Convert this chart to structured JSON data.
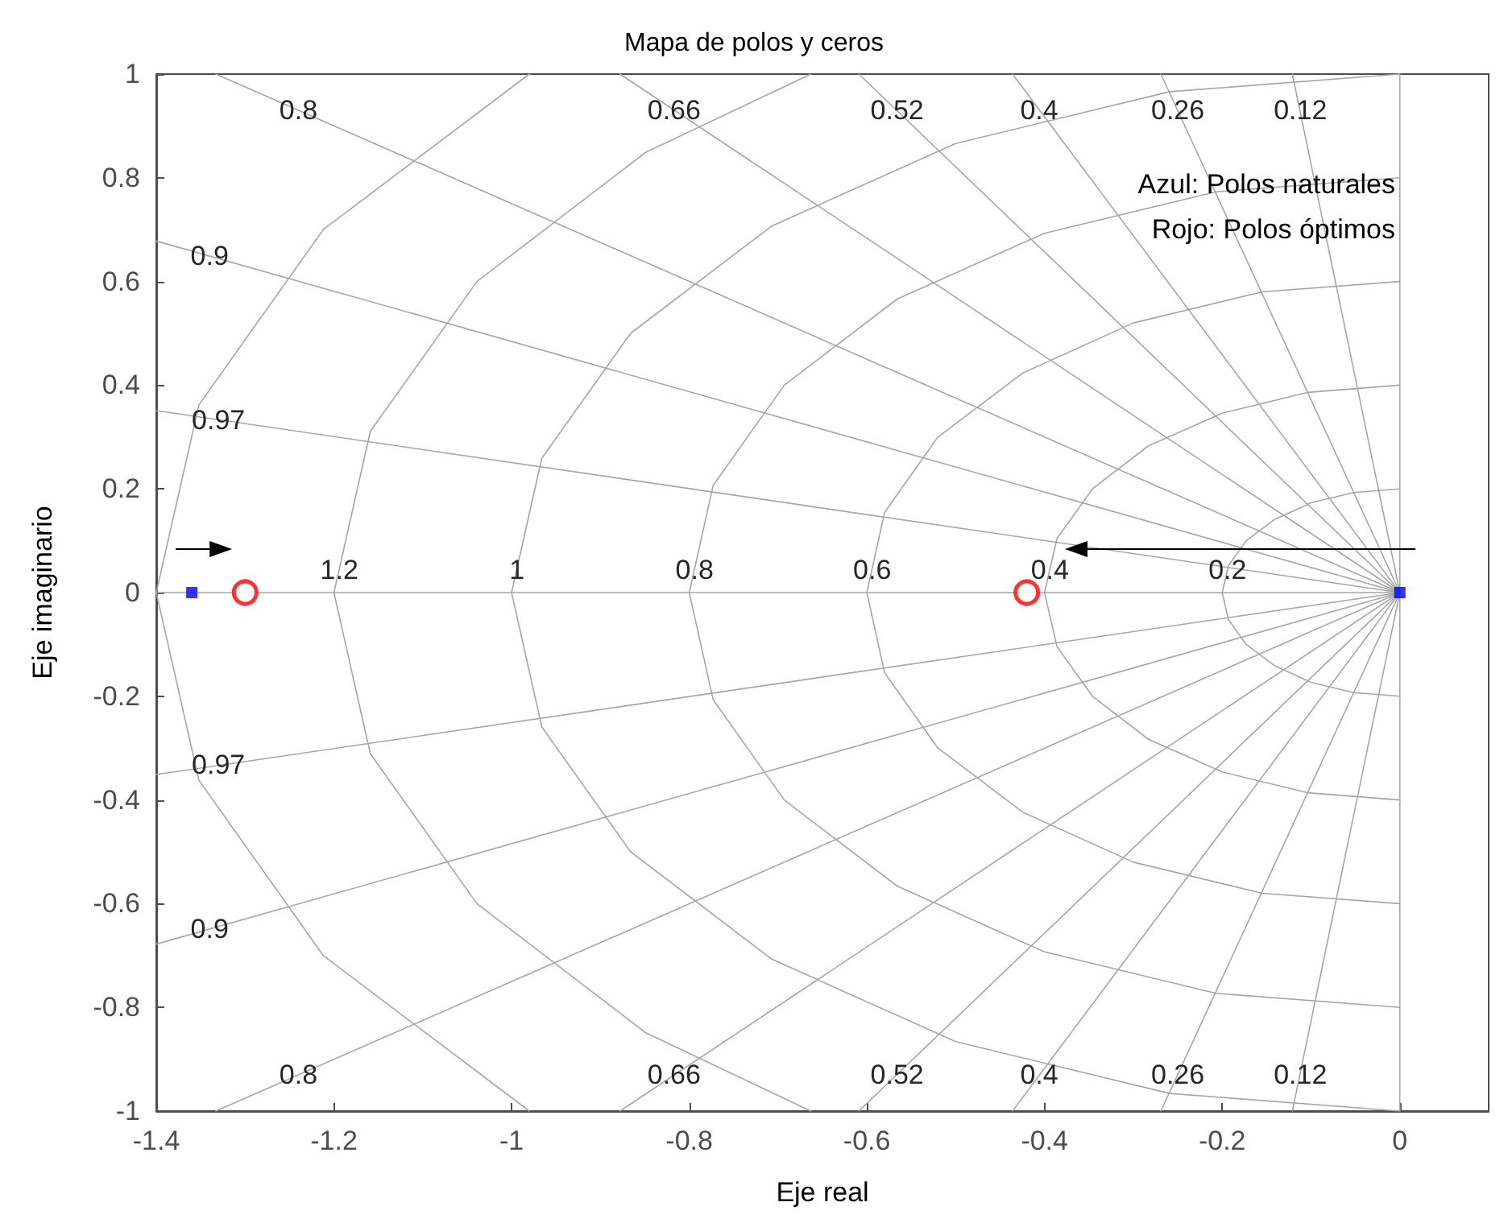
{
  "chart_data": {
    "type": "scatter",
    "title": "Mapa de polos y ceros",
    "xlabel": "Eje real",
    "ylabel": "Eje imaginario",
    "xlim": [
      -1.4,
      0.1
    ],
    "ylim": [
      -1,
      1
    ],
    "xticks": [
      -1.4,
      -1.2,
      -1,
      -0.8,
      -0.6,
      -0.4,
      -0.2,
      0
    ],
    "yticks": [
      -1,
      -0.8,
      -0.6,
      -0.4,
      -0.2,
      0,
      0.2,
      0.4,
      0.6,
      0.8,
      1
    ],
    "grid": false,
    "series": [
      {
        "type": "line",
        "color": "#a6a6a6",
        "marker": "none",
        "x": [
          0,
          -0.052,
          -0.1,
          -0.141,
          -0.173,
          -0.193,
          -0.2,
          -0.193,
          -0.173,
          -0.141,
          -0.1,
          -0.052,
          0
        ],
        "values": [
          0.2,
          0.193,
          0.173,
          0.141,
          0.1,
          0.052,
          0,
          -0.052,
          -0.1,
          -0.141,
          -0.173,
          -0.193,
          -0.2
        ]
      },
      {
        "type": "line",
        "color": "#a6a6a6",
        "marker": "none",
        "x": [
          0,
          -0.104,
          -0.2,
          -0.283,
          -0.346,
          -0.386,
          -0.4,
          -0.386,
          -0.346,
          -0.283,
          -0.2,
          -0.104,
          0
        ],
        "values": [
          0.4,
          0.386,
          0.346,
          0.283,
          0.2,
          0.104,
          0,
          -0.104,
          -0.2,
          -0.283,
          -0.346,
          -0.386,
          -0.4
        ]
      },
      {
        "type": "line",
        "color": "#a6a6a6",
        "marker": "none",
        "x": [
          0,
          -0.155,
          -0.3,
          -0.424,
          -0.52,
          -0.58,
          -0.6,
          -0.58,
          -0.52,
          -0.424,
          -0.3,
          -0.155,
          0
        ],
        "values": [
          0.6,
          0.58,
          0.52,
          0.424,
          0.3,
          0.155,
          0,
          -0.155,
          -0.3,
          -0.424,
          -0.52,
          -0.58,
          -0.6
        ]
      },
      {
        "type": "line",
        "color": "#a6a6a6",
        "marker": "none",
        "x": [
          0,
          -0.207,
          -0.4,
          -0.566,
          -0.693,
          -0.773,
          -0.8,
          -0.773,
          -0.693,
          -0.566,
          -0.4,
          -0.207,
          0
        ],
        "values": [
          0.8,
          0.773,
          0.693,
          0.566,
          0.4,
          0.207,
          0,
          -0.207,
          -0.4,
          -0.566,
          -0.693,
          -0.773,
          -0.8
        ]
      },
      {
        "type": "line",
        "color": "#a6a6a6",
        "marker": "none",
        "x": [
          0,
          -0.259,
          -0.5,
          -0.707,
          -0.866,
          -0.966,
          -1,
          -0.966,
          -0.866,
          -0.707,
          -0.5,
          -0.259,
          0
        ],
        "values": [
          1,
          0.966,
          0.866,
          0.707,
          0.5,
          0.259,
          0,
          -0.259,
          -0.5,
          -0.707,
          -0.866,
          -0.966,
          -1
        ]
      },
      {
        "type": "line",
        "color": "#a6a6a6",
        "marker": "none",
        "x": [
          -0.663,
          -0.849,
          -1.039,
          -1.159,
          -1.2,
          -1.159,
          -1.039,
          -0.849,
          -0.663
        ],
        "values": [
          1,
          0.849,
          0.6,
          0.311,
          0,
          -0.311,
          -0.6,
          -0.849,
          -1
        ]
      },
      {
        "type": "line",
        "color": "#a6a6a6",
        "marker": "none",
        "x": [
          -0.98,
          -1.212,
          -1.352,
          -1.4,
          -1.352,
          -1.212,
          -0.98
        ],
        "values": [
          1,
          0.7,
          0.362,
          0,
          -0.362,
          -0.7,
          -1
        ]
      },
      {
        "type": "line",
        "color": "#a6a6a6",
        "marker": "none",
        "x": [
          -0.121,
          0,
          -0.121
        ],
        "values": [
          1,
          0,
          -1
        ]
      },
      {
        "type": "line",
        "color": "#a6a6a6",
        "marker": "none",
        "x": [
          -0.269,
          0,
          -0.269
        ],
        "values": [
          1,
          0,
          -1
        ]
      },
      {
        "type": "line",
        "color": "#a6a6a6",
        "marker": "none",
        "x": [
          -0.436,
          0,
          -0.436
        ],
        "values": [
          1,
          0,
          -1
        ]
      },
      {
        "type": "line",
        "color": "#a6a6a6",
        "marker": "none",
        "x": [
          -0.609,
          0,
          -0.609
        ],
        "values": [
          1,
          0,
          -1
        ]
      },
      {
        "type": "line",
        "color": "#a6a6a6",
        "marker": "none",
        "x": [
          -0.878,
          0,
          -0.878
        ],
        "values": [
          1,
          0,
          -1
        ]
      },
      {
        "type": "line",
        "color": "#a6a6a6",
        "marker": "none",
        "x": [
          -1.333,
          0,
          -1.333
        ],
        "values": [
          1,
          0,
          -1
        ]
      },
      {
        "type": "line",
        "color": "#a6a6a6",
        "marker": "none",
        "x": [
          -1.4,
          0,
          -1.4
        ],
        "values": [
          0.678,
          0,
          -0.678
        ]
      },
      {
        "type": "line",
        "color": "#a6a6a6",
        "marker": "none",
        "x": [
          -1.4,
          0,
          -1.4
        ],
        "values": [
          0.351,
          0,
          -0.351
        ]
      },
      {
        "type": "line",
        "color": "#a6a6a6",
        "marker": "none",
        "x": [
          -1.4,
          0
        ],
        "values": [
          0,
          0
        ]
      },
      {
        "type": "line",
        "color": "#a6a6a6",
        "marker": "none",
        "x": [
          0,
          0
        ],
        "values": [
          1,
          -1
        ]
      },
      {
        "type": "scatter",
        "color": "#0000ff",
        "marker": "square",
        "x": [
          -1.36,
          0
        ],
        "values": [
          0,
          0
        ]
      },
      {
        "type": "scatter",
        "color": "#ff0000",
        "marker": "circle",
        "x": [
          -1.3,
          -0.42
        ],
        "values": [
          0,
          0
        ]
      }
    ],
    "annotations": [
      {
        "text": "0.8",
        "x": -1.24,
        "y": 0.93
      },
      {
        "text": "0.66",
        "x": -0.817,
        "y": 0.93
      },
      {
        "text": "0.52",
        "x": -0.566,
        "y": 0.93
      },
      {
        "text": "0.4",
        "x": -0.406,
        "y": 0.93
      },
      {
        "text": "0.26",
        "x": -0.25,
        "y": 0.93
      },
      {
        "text": "0.12",
        "x": -0.112,
        "y": 0.93
      },
      {
        "text": "0.9",
        "x": -1.34,
        "y": 0.649
      },
      {
        "text": "0.97",
        "x": -1.33,
        "y": 0.333
      },
      {
        "text": "0.97",
        "x": -1.33,
        "y": -0.333
      },
      {
        "text": "0.9",
        "x": -1.34,
        "y": -0.649
      },
      {
        "text": "0.8",
        "x": -1.24,
        "y": -0.93
      },
      {
        "text": "0.66",
        "x": -0.817,
        "y": -0.93
      },
      {
        "text": "0.52",
        "x": -0.566,
        "y": -0.93
      },
      {
        "text": "0.4",
        "x": -0.406,
        "y": -0.93
      },
      {
        "text": "0.26",
        "x": -0.25,
        "y": -0.93
      },
      {
        "text": "0.12",
        "x": -0.112,
        "y": -0.93
      },
      {
        "text": "1.2",
        "x": -1.194,
        "y": 0.043
      },
      {
        "text": "1",
        "x": -0.994,
        "y": 0.043
      },
      {
        "text": "0.8",
        "x": -0.794,
        "y": 0.043
      },
      {
        "text": "0.6",
        "x": -0.594,
        "y": 0.043
      },
      {
        "text": "0.4",
        "x": -0.394,
        "y": 0.043
      },
      {
        "text": "0.2",
        "x": -0.194,
        "y": 0.043
      },
      "Azul: Polos naturales",
      "Rojo: Polos óptimos"
    ]
  }
}
